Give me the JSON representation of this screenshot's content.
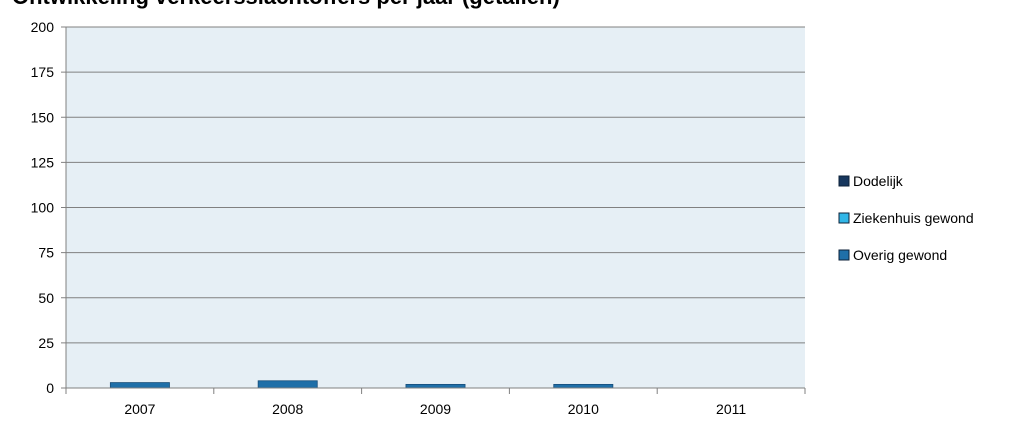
{
  "chart_data": {
    "type": "bar",
    "stacked": true,
    "title": "Ontwikkeling verkeersslachtoffers per jaar (getallen)",
    "xlabel": "",
    "ylabel": "",
    "categories": [
      "2007",
      "2008",
      "2009",
      "2010",
      "2011"
    ],
    "ylim": [
      0,
      200
    ],
    "yticks": [
      0,
      25,
      50,
      75,
      100,
      125,
      150,
      175,
      200
    ],
    "grid": true,
    "legend_position": "right",
    "series": [
      {
        "name": "Dodelijk",
        "values": [
          0,
          0,
          0,
          0,
          0
        ],
        "color": "#17375E"
      },
      {
        "name": "Ziekenhuis gewond",
        "values": [
          0,
          0,
          0,
          0,
          0
        ],
        "color": "#31B6E7"
      },
      {
        "name": "Overig gewond",
        "values": [
          3,
          4,
          2,
          2,
          0
        ],
        "color": "#1F6FA8"
      }
    ],
    "colors": {
      "plot_background": "#E6EFF5",
      "gridline": "#808080",
      "axis": "#808080"
    }
  }
}
